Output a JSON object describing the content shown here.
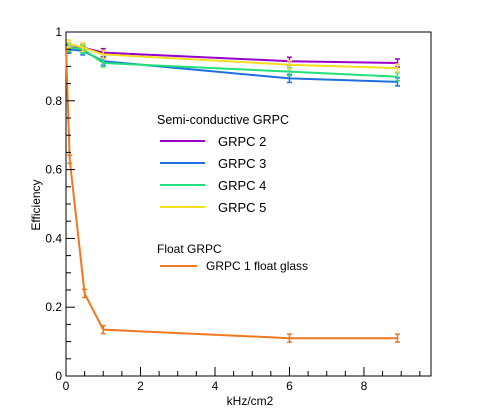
{
  "chart_data": {
    "type": "line",
    "title": "",
    "xlabel": "kHz/cm2",
    "ylabel": "Efficiency",
    "xlim": [
      0,
      9.8
    ],
    "ylim": [
      0,
      1
    ],
    "x_ticks": [
      "0",
      "2",
      "4",
      "6",
      "8"
    ],
    "y_ticks": [
      "0",
      "0.2",
      "0.4",
      "0.6",
      "0.8",
      "1"
    ],
    "legend": {
      "group_1_title": "Semi-conductive GRPC",
      "group_2_title": "Float GRPC",
      "placement": "center"
    },
    "series": [
      {
        "name": "GRPC 2",
        "color": "#9900cc",
        "legend_group": 1,
        "x": [
          0.08,
          0.45,
          1.0,
          6.0,
          8.9
        ],
        "y": [
          0.955,
          0.955,
          0.94,
          0.915,
          0.91
        ]
      },
      {
        "name": "GRPC 3",
        "color": "#1f6fe0",
        "legend_group": 1,
        "x": [
          0.08,
          0.45,
          1.0,
          6.0,
          8.9
        ],
        "y": [
          0.95,
          0.945,
          0.915,
          0.865,
          0.855
        ]
      },
      {
        "name": "GRPC 4",
        "color": "#22e07a",
        "legend_group": 1,
        "x": [
          0.08,
          0.45,
          1.0,
          6.0,
          8.9
        ],
        "y": [
          0.955,
          0.95,
          0.91,
          0.885,
          0.87
        ]
      },
      {
        "name": "GRPC 5",
        "color": "#f2de20",
        "legend_group": 1,
        "x": [
          0.08,
          0.45,
          1.0,
          6.0,
          8.9
        ],
        "y": [
          0.965,
          0.955,
          0.935,
          0.905,
          0.895
        ]
      },
      {
        "name": "GRPC 1 float glass",
        "color": "#f07820",
        "legend_group": 2,
        "x": [
          0.0,
          0.1,
          0.5,
          1.0,
          6.0,
          8.9
        ],
        "y": [
          0.955,
          0.63,
          0.24,
          0.135,
          0.11,
          0.11
        ]
      }
    ]
  }
}
